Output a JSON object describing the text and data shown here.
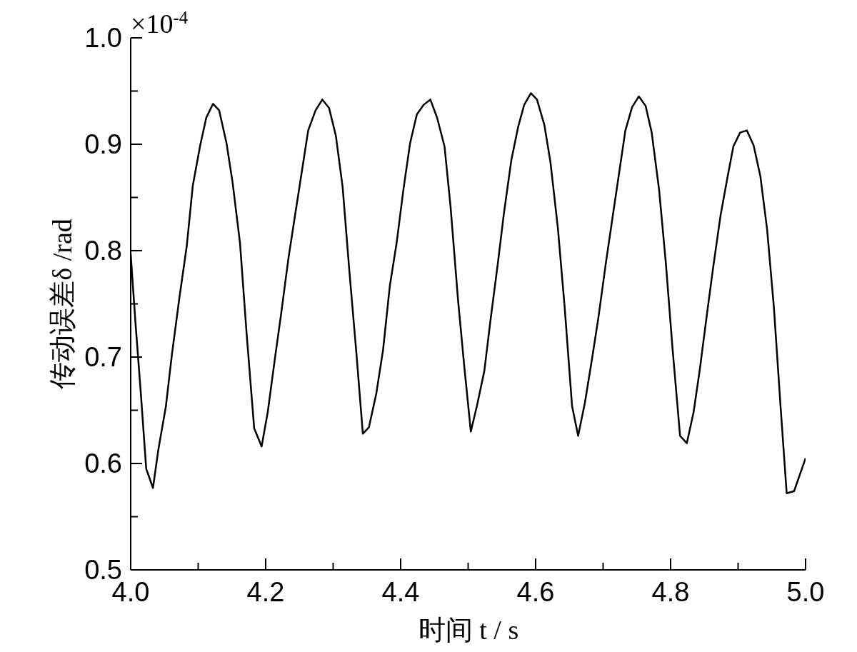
{
  "chart_data": {
    "type": "line",
    "xlabel": "时间 t / s",
    "ylabel": "传动误差δ /rad",
    "annotations": [
      "×10$^{-4}$"
    ],
    "xlim": [
      4.0,
      5.0
    ],
    "ylim": [
      0.5,
      1.0
    ],
    "xticks": [
      {
        "value": 4.0,
        "label": "4.0"
      },
      {
        "value": 4.1,
        "label": null
      },
      {
        "value": 4.2,
        "label": "4.2"
      },
      {
        "value": 4.3,
        "label": null
      },
      {
        "value": 4.4,
        "label": "4.4"
      },
      {
        "value": 4.5,
        "label": null
      },
      {
        "value": 4.6,
        "label": "4.6"
      },
      {
        "value": 4.7,
        "label": null
      },
      {
        "value": 4.8,
        "label": "4.8"
      },
      {
        "value": 4.9,
        "label": null
      },
      {
        "value": 5.0,
        "label": "5.0"
      }
    ],
    "yticks": [
      0.5,
      {
        "value": 0.55,
        "label": null
      },
      0.6,
      {
        "value": 0.65,
        "label": null
      },
      0.7,
      {
        "value": 0.75,
        "label": null
      },
      0.8,
      {
        "value": 0.85,
        "label": null
      },
      0.9,
      {
        "value": 0.95,
        "label": null
      },
      {
        "value": 1.0,
        "label": "1.0"
      }
    ],
    "grid": false,
    "legend": false,
    "marker": "none",
    "line_style": "solid",
    "series": [
      {
        "color": "#000000",
        "x": [
          4.0,
          4.007,
          4.015,
          4.023,
          4.033,
          4.041,
          4.052,
          4.061,
          4.072,
          4.083,
          4.092,
          4.103,
          4.112,
          4.122,
          4.131,
          4.142,
          4.151,
          4.162,
          4.172,
          4.183,
          4.194,
          4.203,
          4.214,
          4.223,
          4.234,
          4.243,
          4.254,
          4.263,
          4.274,
          4.284,
          4.294,
          4.304,
          4.314,
          4.324,
          4.334,
          4.344,
          4.353,
          4.364,
          4.374,
          4.384,
          4.394,
          4.404,
          4.414,
          4.424,
          4.434,
          4.444,
          4.454,
          4.465,
          4.474,
          4.485,
          4.494,
          4.504,
          4.513,
          4.524,
          4.533,
          4.544,
          4.553,
          4.564,
          4.574,
          4.583,
          4.593,
          4.602,
          4.613,
          4.622,
          4.633,
          4.643,
          4.654,
          4.663,
          4.673,
          4.684,
          4.693,
          4.704,
          4.713,
          4.723,
          4.733,
          4.743,
          4.753,
          4.763,
          4.772,
          4.783,
          4.793,
          4.803,
          4.814,
          4.824,
          4.834,
          4.843,
          4.854,
          4.863,
          4.874,
          4.884,
          4.893,
          4.903,
          4.913,
          4.923,
          4.933,
          4.943,
          4.953,
          4.963,
          4.972,
          4.983,
          5.0
        ],
        "values": [
          0.797,
          0.733,
          0.666,
          0.595,
          0.577,
          0.613,
          0.653,
          0.702,
          0.755,
          0.804,
          0.861,
          0.899,
          0.925,
          0.938,
          0.932,
          0.901,
          0.864,
          0.807,
          0.72,
          0.633,
          0.616,
          0.648,
          0.7,
          0.741,
          0.794,
          0.831,
          0.876,
          0.913,
          0.932,
          0.942,
          0.934,
          0.908,
          0.86,
          0.781,
          0.707,
          0.628,
          0.634,
          0.666,
          0.707,
          0.767,
          0.807,
          0.857,
          0.901,
          0.928,
          0.937,
          0.942,
          0.925,
          0.898,
          0.841,
          0.754,
          0.693,
          0.63,
          0.654,
          0.687,
          0.734,
          0.788,
          0.835,
          0.885,
          0.916,
          0.937,
          0.948,
          0.942,
          0.918,
          0.883,
          0.821,
          0.747,
          0.654,
          0.626,
          0.657,
          0.7,
          0.737,
          0.788,
          0.827,
          0.87,
          0.913,
          0.935,
          0.945,
          0.936,
          0.911,
          0.857,
          0.788,
          0.707,
          0.626,
          0.619,
          0.648,
          0.687,
          0.741,
          0.784,
          0.833,
          0.868,
          0.898,
          0.911,
          0.913,
          0.899,
          0.87,
          0.82,
          0.747,
          0.653,
          0.572,
          0.574,
          0.605
        ]
      }
    ]
  }
}
